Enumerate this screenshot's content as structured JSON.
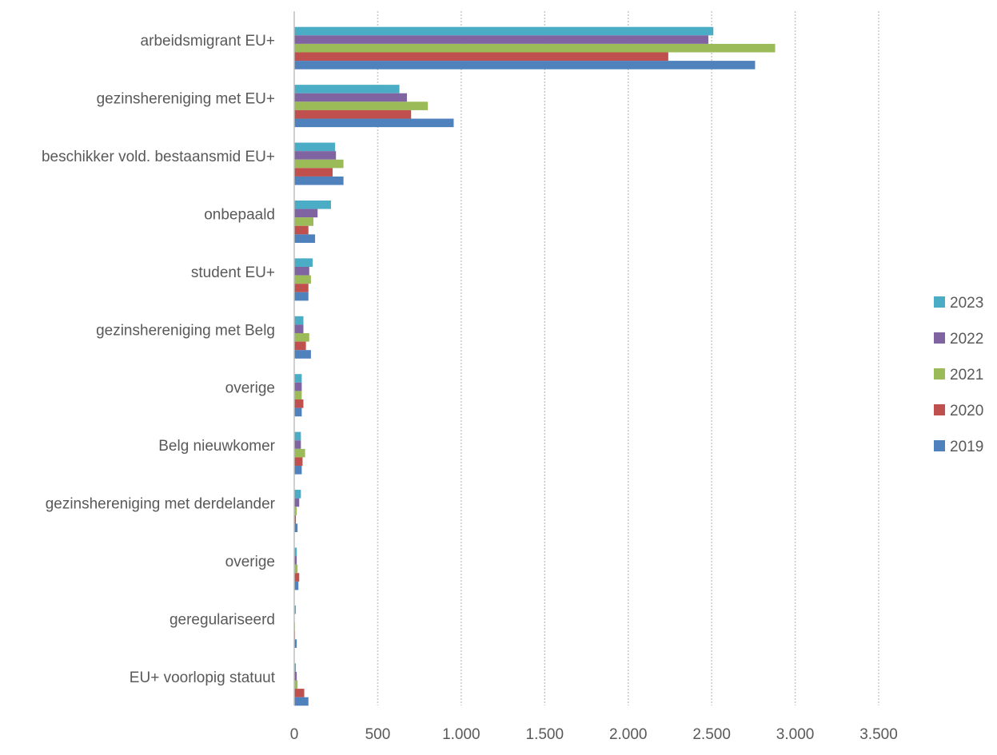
{
  "chart_data": {
    "type": "bar",
    "orientation": "horizontal",
    "title": "",
    "xlabel": "",
    "ylabel": "",
    "xlim": [
      0,
      3500
    ],
    "x_ticks": [
      0,
      500,
      1000,
      1500,
      2000,
      2500,
      3000,
      3500
    ],
    "x_tick_labels": [
      "0",
      "500",
      "1.000",
      "1.500",
      "2.000",
      "2.500",
      "3.000",
      "3.500"
    ],
    "grid": "vertical",
    "legend_position": "right",
    "categories": [
      "arbeidsmigrant EU+",
      "gezinshereniging met EU+",
      "beschikker vold. bestaansmid EU+",
      "onbepaald",
      "student EU+",
      "gezinshereniging met Belg",
      "overige",
      "Belg nieuwkomer",
      "gezinshereniging met derdelander",
      "overige",
      "geregulariseerd",
      "EU+ voorlopig statuut"
    ],
    "series": [
      {
        "name": "2023",
        "color": "#4BACC6",
        "values": [
          2510,
          630,
          245,
          220,
          110,
          55,
          45,
          40,
          40,
          15,
          10,
          10
        ]
      },
      {
        "name": "2022",
        "color": "#8064A2",
        "values": [
          2480,
          675,
          250,
          140,
          90,
          55,
          45,
          40,
          30,
          15,
          0,
          15
        ]
      },
      {
        "name": "2021",
        "color": "#9BBB59",
        "values": [
          2880,
          800,
          295,
          115,
          100,
          90,
          45,
          65,
          15,
          20,
          5,
          20
        ]
      },
      {
        "name": "2020",
        "color": "#C0504D",
        "values": [
          2240,
          700,
          230,
          85,
          85,
          70,
          55,
          50,
          10,
          30,
          5,
          60
        ]
      },
      {
        "name": "2019",
        "color": "#4F81BD",
        "values": [
          2760,
          955,
          295,
          125,
          85,
          100,
          45,
          45,
          20,
          25,
          15,
          85
        ]
      }
    ]
  }
}
